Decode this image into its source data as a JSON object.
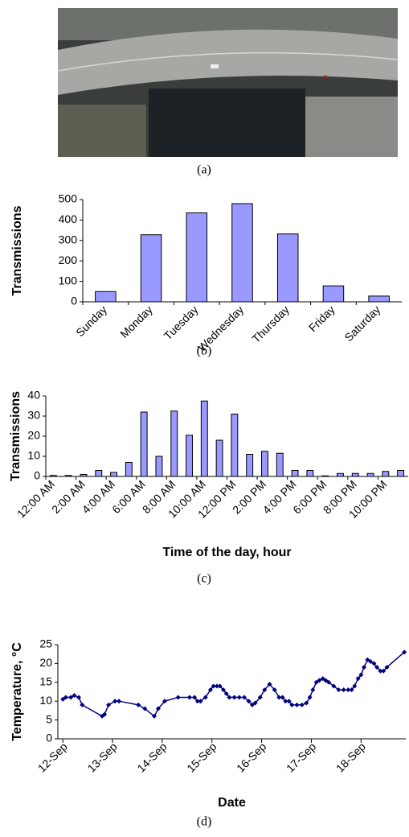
{
  "image": {
    "caption": "(a)"
  },
  "chart_data": [
    {
      "type": "bar",
      "caption": "(b)",
      "ylabel": "Transmissions",
      "categories": [
        "Sunday",
        "Monday",
        "Tuesday",
        "Wednesday",
        "Thursday",
        "Friday",
        "Saturday"
      ],
      "values": [
        50,
        328,
        435,
        480,
        332,
        78,
        28
      ],
      "color": "#9999ff",
      "ylim": [
        0,
        500
      ],
      "yticks": [
        0,
        100,
        200,
        300,
        400,
        500
      ],
      "grid": false
    },
    {
      "type": "bar",
      "caption": "(c)",
      "ylabel": "Transmissions",
      "xlabel": "Time of the day, hour",
      "categories": [
        "12:00 AM",
        null,
        "2:00 AM",
        null,
        "4:00 AM",
        null,
        "6:00 AM",
        null,
        "8:00 AM",
        null,
        "10:00 AM",
        null,
        "12:00 PM",
        null,
        "2:00 PM",
        null,
        "4:00 PM",
        null,
        "6:00 PM",
        null,
        "8:00 PM",
        null,
        "10:00 PM",
        null
      ],
      "values": [
        0.5,
        0.5,
        1,
        3,
        2,
        7,
        32,
        10,
        32.5,
        20.5,
        37.5,
        18,
        31,
        11,
        12.5,
        11.5,
        3,
        3,
        0.3,
        1.5,
        1.5,
        1.5,
        2.5,
        3
      ],
      "color": "#9999ff",
      "ylim": [
        0,
        40
      ],
      "yticks": [
        0,
        10,
        20,
        30,
        40
      ],
      "grid": false
    },
    {
      "type": "line",
      "caption": "(d)",
      "ylabel": "Temperature, °C",
      "xlabel": "Date",
      "color": "#000080",
      "x": [
        0,
        0.06,
        0.16,
        0.23,
        0.32,
        0.39,
        0.79,
        0.84,
        0.92,
        1.05,
        1.13,
        1.52,
        1.65,
        1.84,
        1.92,
        2.05,
        2.32,
        2.55,
        2.65,
        2.71,
        2.77,
        2.87,
        2.97,
        3.03,
        3.1,
        3.16,
        3.23,
        3.29,
        3.35,
        3.45,
        3.55,
        3.65,
        3.74,
        3.81,
        3.87,
        3.97,
        4.06,
        4.16,
        4.26,
        4.35,
        4.42,
        4.48,
        4.55,
        4.61,
        4.71,
        4.81,
        4.9,
        4.97,
        5.03,
        5.1,
        5.16,
        5.23,
        5.29,
        5.35,
        5.45,
        5.55,
        5.65,
        5.74,
        5.81,
        5.87,
        5.94,
        6.0,
        6.06,
        6.13,
        6.19,
        6.26,
        6.32,
        6.39,
        6.45,
        6.52,
        6.87
      ],
      "values": [
        10.5,
        11,
        11,
        11.5,
        11,
        9,
        6,
        6.5,
        9,
        10,
        10,
        9,
        8,
        6,
        8,
        10,
        11,
        11,
        11,
        10,
        10,
        11,
        13,
        14,
        14,
        14,
        13,
        12,
        11,
        11,
        11,
        11,
        10,
        9,
        9.5,
        11,
        13,
        14.5,
        13,
        11,
        11,
        10,
        10,
        9,
        9,
        9,
        9.5,
        11,
        13,
        15,
        15.5,
        16,
        15.5,
        15,
        14,
        13,
        13,
        13,
        13,
        14,
        16,
        17,
        19,
        21,
        20.5,
        20,
        19,
        18,
        18,
        19,
        23
      ],
      "xlim": [
        -0.1,
        6.9
      ],
      "xticks": [
        {
          "value": 0,
          "label": "12-Sep"
        },
        {
          "value": 1,
          "label": "13-Sep"
        },
        {
          "value": 2,
          "label": "14-Sep"
        },
        {
          "value": 3,
          "label": "15-Sep"
        },
        {
          "value": 4,
          "label": "16-Sep"
        },
        {
          "value": 5,
          "label": "17-Sep"
        },
        {
          "value": 6,
          "label": "18-Sep"
        }
      ],
      "ylim": [
        0,
        25
      ],
      "yticks": [
        0,
        5,
        10,
        15,
        20,
        25
      ],
      "grid": false
    }
  ]
}
